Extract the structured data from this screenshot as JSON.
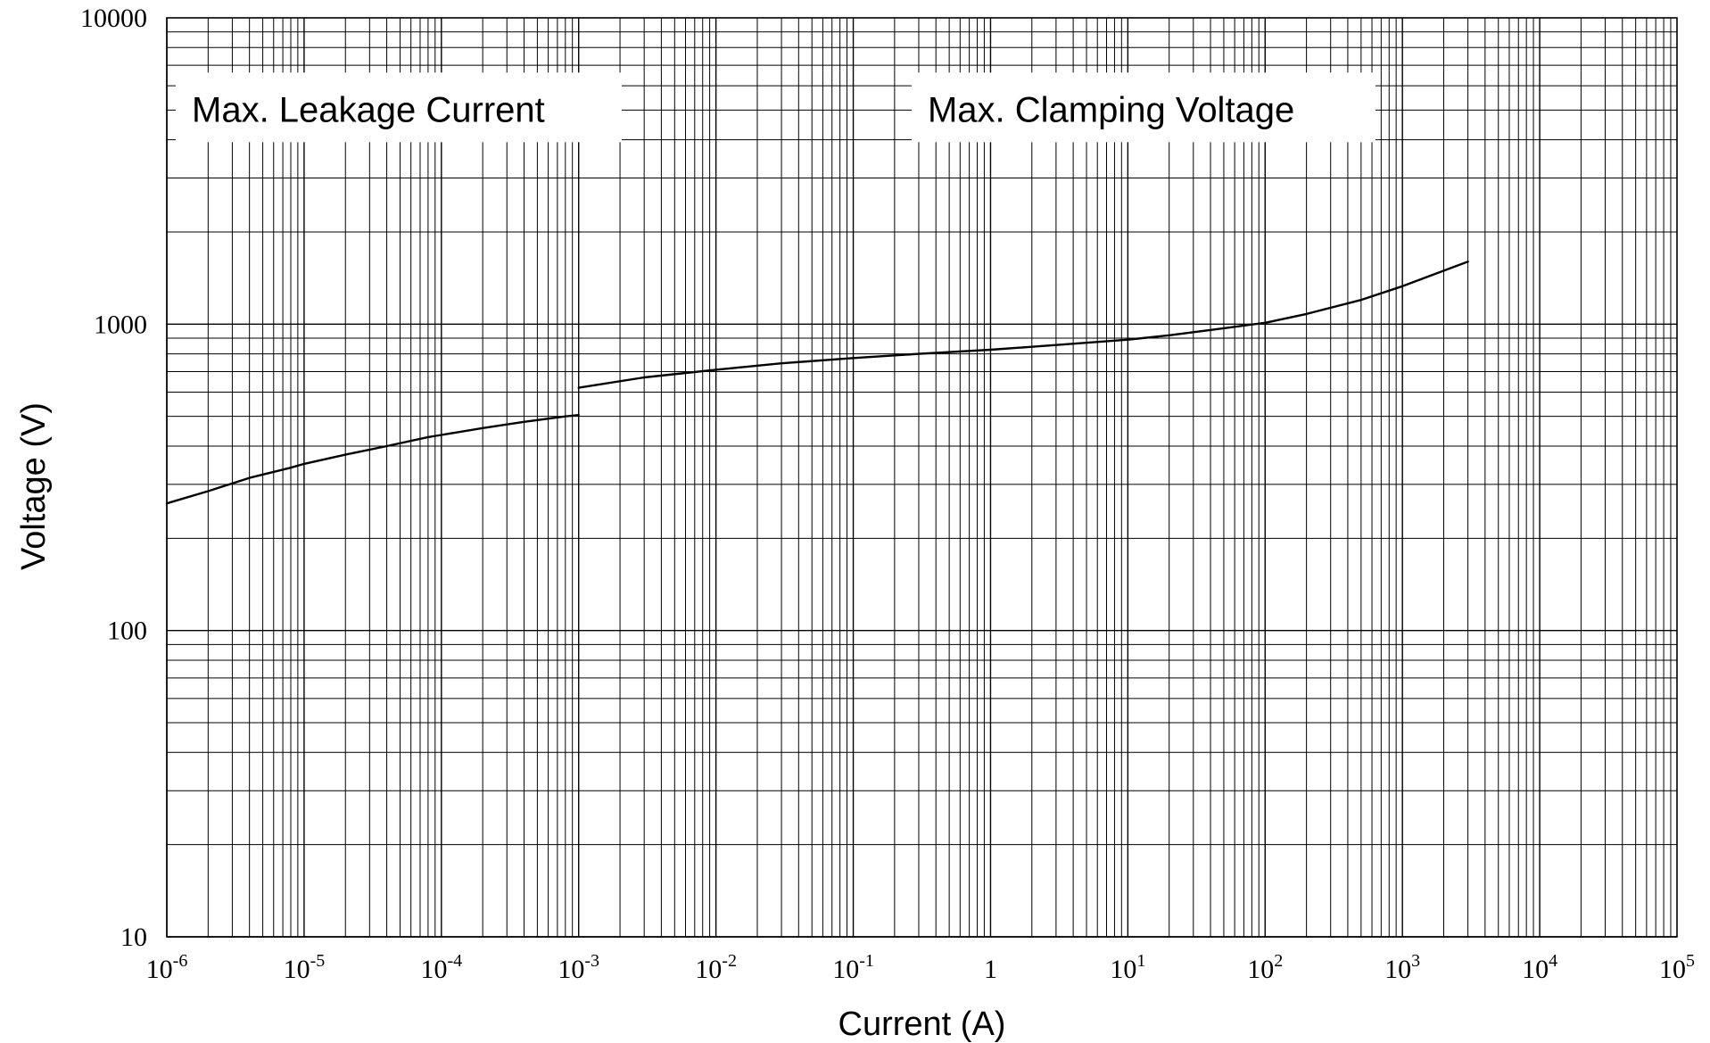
{
  "chart_data": {
    "type": "line",
    "xlabel": "Current (A)",
    "ylabel": "Voltage   (V)",
    "x_scale": "log",
    "y_scale": "log",
    "xlim": [
      1e-06,
      100000
    ],
    "ylim": [
      10,
      10000
    ],
    "grid": true,
    "x_tick_labels": [
      {
        "base": "10",
        "exp": "-6"
      },
      {
        "base": "10",
        "exp": "-5"
      },
      {
        "base": "10",
        "exp": "-4"
      },
      {
        "base": "10",
        "exp": "-3"
      },
      {
        "base": "10",
        "exp": "-2"
      },
      {
        "base": "10",
        "exp": "-1"
      },
      {
        "base": "1",
        "exp": ""
      },
      {
        "base": "10",
        "exp": "1"
      },
      {
        "base": "10",
        "exp": "2"
      },
      {
        "base": "10",
        "exp": "3"
      },
      {
        "base": "10",
        "exp": "4"
      },
      {
        "base": "10",
        "exp": "5"
      }
    ],
    "y_tick_labels": [
      "10000",
      "1000",
      "100",
      "10"
    ],
    "annotations": [
      {
        "text": "Max. Leakage Current",
        "x": 1e-06,
        "y": 5000
      },
      {
        "text": "Max.  Clamping  Voltage",
        "x": 0.3,
        "y": 5000
      }
    ],
    "series": [
      {
        "x": [
          1e-06,
          2e-06,
          4e-06,
          8e-06,
          1e-05,
          2e-05,
          4e-05,
          8e-05,
          0.0001,
          0.0002,
          0.0004,
          0.0008,
          0.001
        ],
        "y": [
          260,
          285,
          315,
          340,
          350,
          375,
          400,
          428,
          435,
          458,
          480,
          500,
          505
        ]
      },
      {
        "x": [
          0.001,
          0.003,
          0.01,
          0.03,
          0.1,
          0.3,
          1,
          3,
          10,
          20,
          50,
          100,
          200,
          500,
          1000,
          3000
        ],
        "y": [
          620,
          670,
          710,
          745,
          775,
          800,
          825,
          855,
          890,
          920,
          970,
          1010,
          1080,
          1200,
          1330,
          1600
        ]
      }
    ]
  }
}
